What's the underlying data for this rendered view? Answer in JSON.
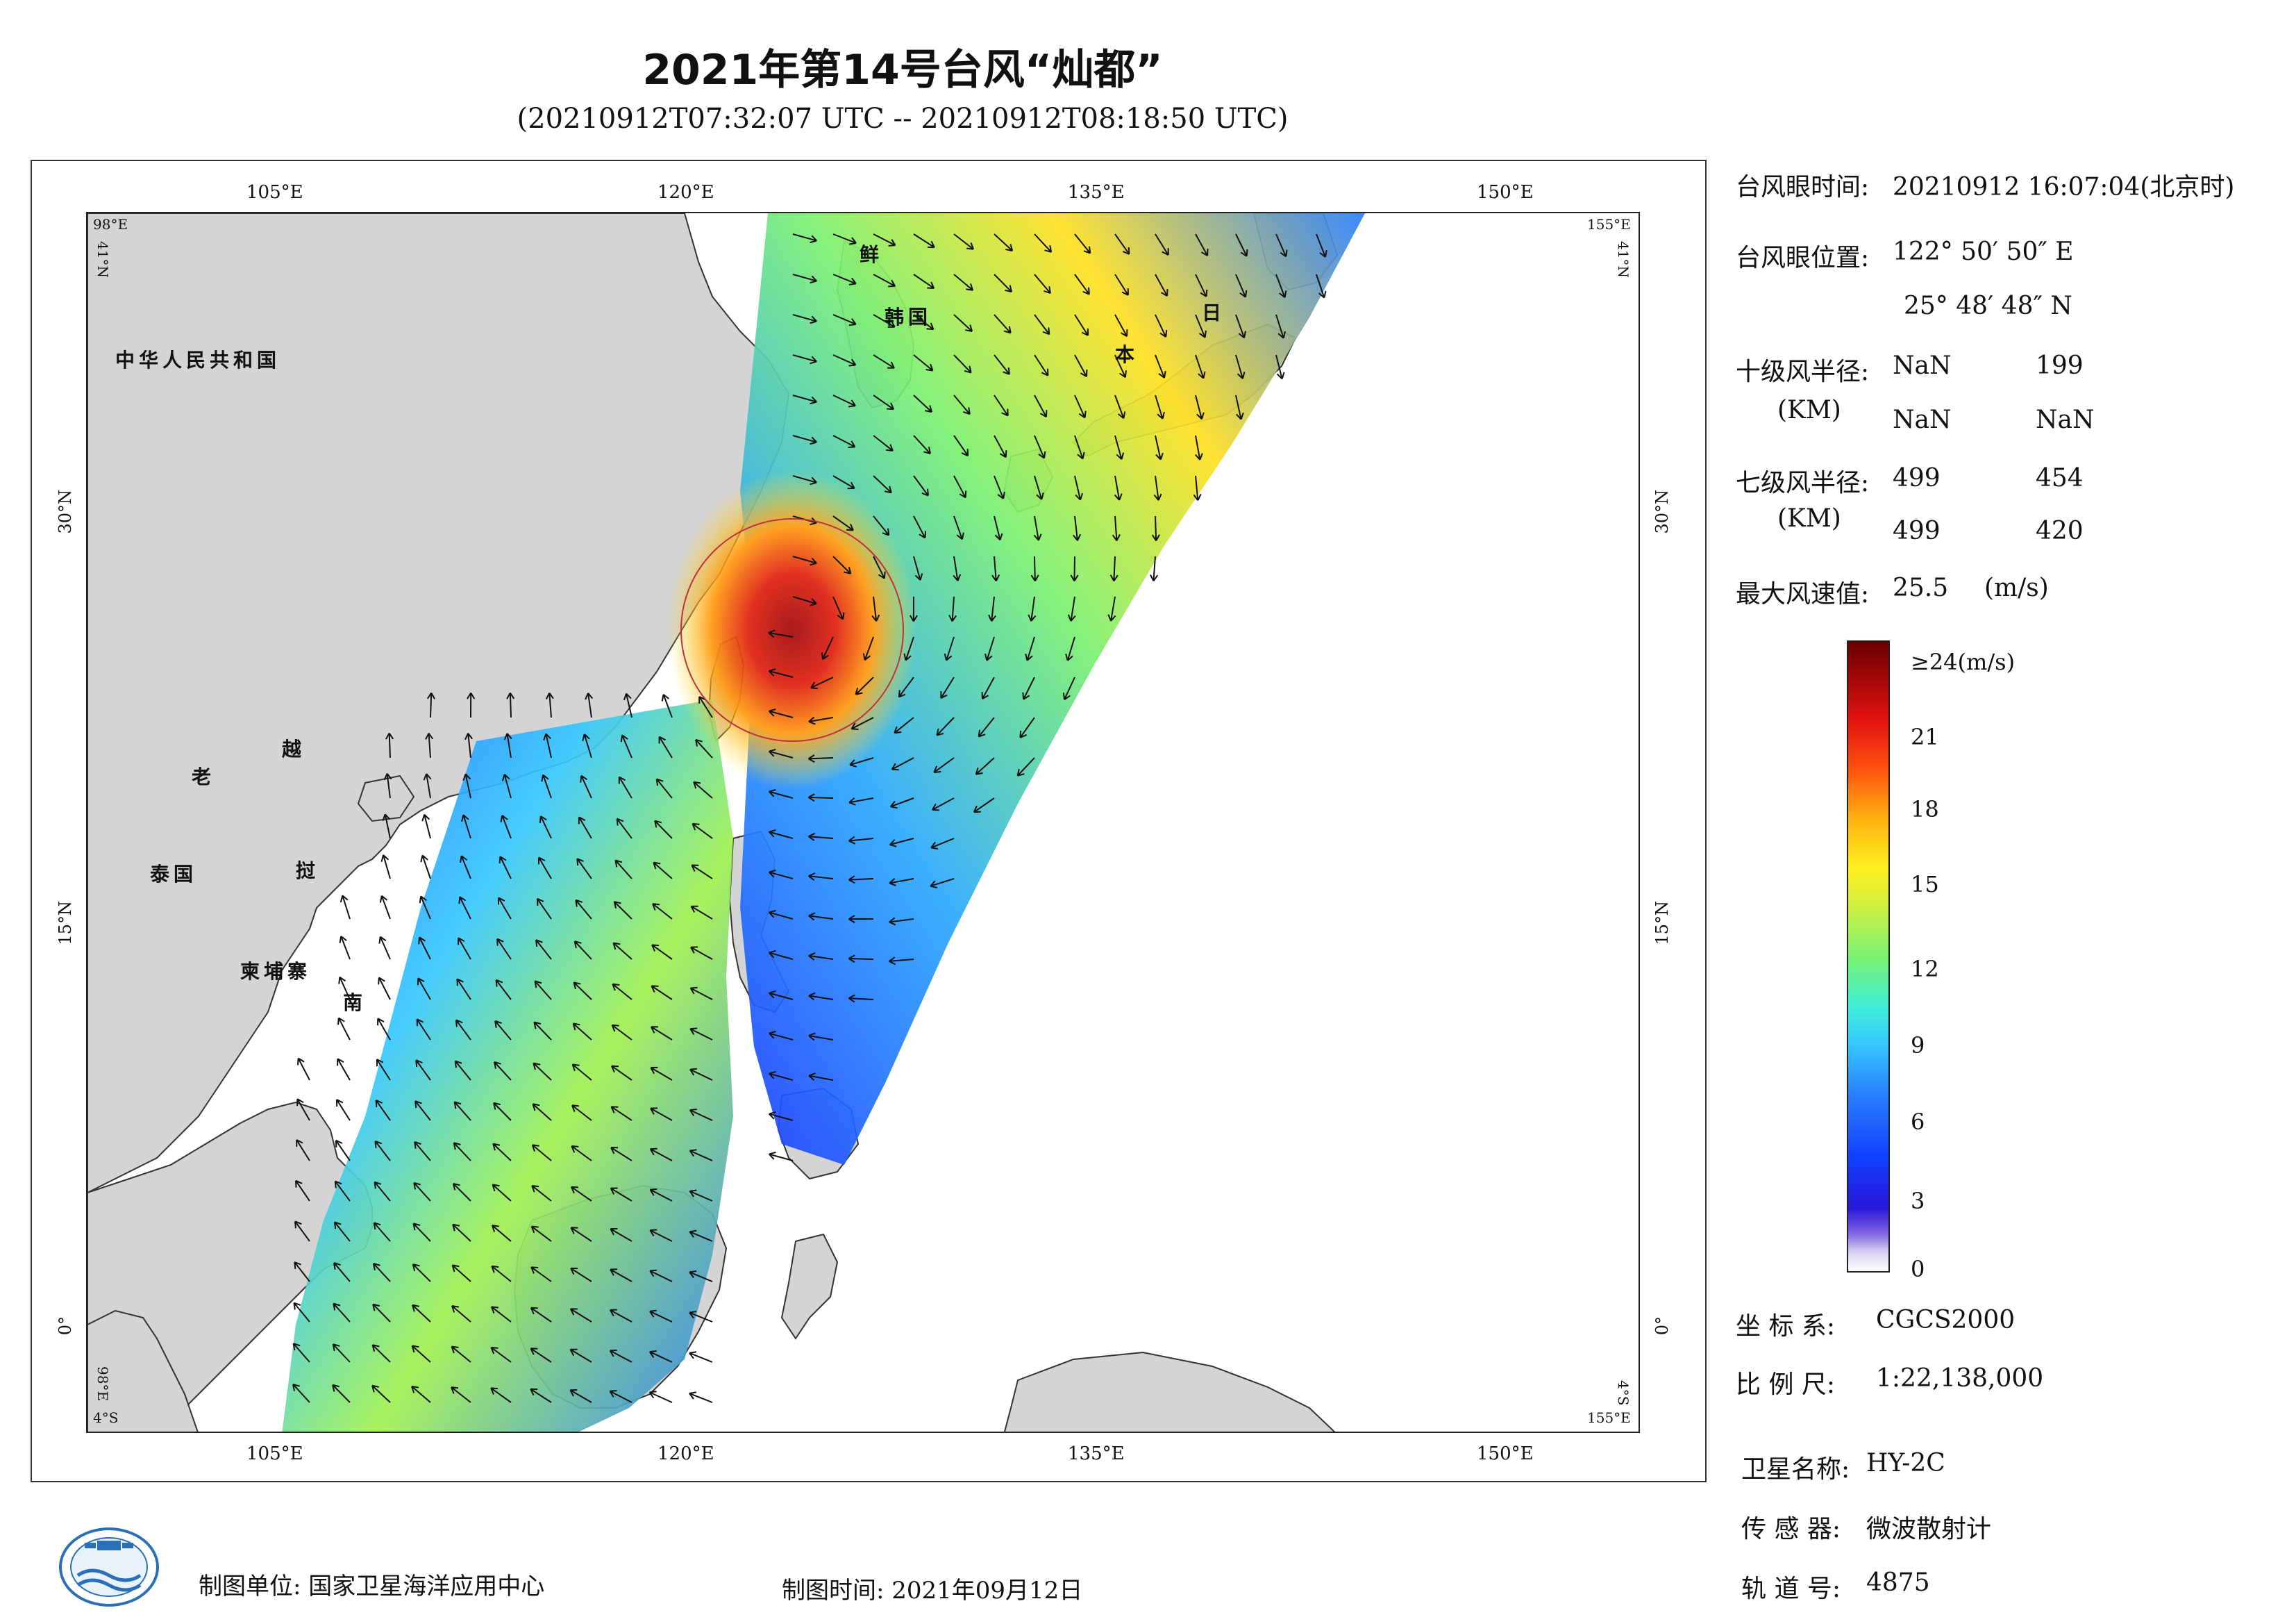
{
  "title": "2021年第14号台风“灿都”",
  "subtitle": "(20210912T07:32:07 UTC -- 20210912T08:18:50 UTC)",
  "axes": {
    "top_lon": [
      "105°E",
      "120°E",
      "135°E",
      "150°E"
    ],
    "bottom_lon": [
      "105°E",
      "120°E",
      "135°E",
      "150°E"
    ],
    "left_lat": [
      "30°N",
      "15°N",
      "0°"
    ],
    "right_lat": [
      "30°N",
      "15°N",
      "0°"
    ],
    "corner_tl_lon": "98°E",
    "corner_tl_lat": "41°N",
    "corner_tr_lon": "155°E",
    "corner_tr_lat": "41°N",
    "corner_bl_lon": "98°E",
    "corner_bl_lat": "4°S",
    "corner_br_lon": "155°E",
    "corner_br_lat": "4°S"
  },
  "labels": {
    "china": "中华人民共和国",
    "laos": "老",
    "vietnam_1": "越",
    "vietnam_2": "南",
    "thailand": "泰国",
    "cambodia": "柬埔寨",
    "korea_1": "鲜",
    "korea_2": "韩国",
    "japan_1": "日",
    "japan_2": "本",
    "myanmar_like": "挝"
  },
  "panel": {
    "eye_time_label": "台风眼时间:",
    "eye_time_value": "20210912 16:07:04(北京时)",
    "eye_pos_label": "台风眼位置:",
    "eye_pos_lon": "122° 50′ 50″ E",
    "eye_pos_lat": "25° 48′ 48″ N",
    "r10_label": "十级风半径:",
    "r10_unit": "(KM)",
    "r10_values": [
      "NaN",
      "199",
      "NaN",
      "NaN"
    ],
    "r7_label": "七级风半径:",
    "r7_unit": "(KM)",
    "r7_values": [
      "499",
      "454",
      "499",
      "420"
    ],
    "max_wind_label": "最大风速值:",
    "max_wind_value": "25.5",
    "max_wind_unit": "(m/s)"
  },
  "colorbar": {
    "top_label": "≥24(m/s)",
    "ticks": [
      "21",
      "18",
      "15",
      "12",
      "9",
      "6",
      "3",
      "0"
    ]
  },
  "meta": {
    "crs_label": "坐 标 系:",
    "crs_value": "CGCS2000",
    "scale_label": "比 例 尺:",
    "scale_value": "1:22,138,000",
    "satellite_label": "卫星名称:",
    "satellite_value": "HY-2C",
    "sensor_label": "传 感 器:",
    "sensor_value": "微波散射计",
    "orbit_label": "轨 道 号:",
    "orbit_value": "4875"
  },
  "footer": {
    "producer": "制图单位: 国家卫星海洋应用中心",
    "date": "制图时间: 2021年09月12日"
  },
  "colors": {
    "land": "#d4d4d4",
    "frame": "#333333",
    "eye_circle": "#c0303a"
  }
}
